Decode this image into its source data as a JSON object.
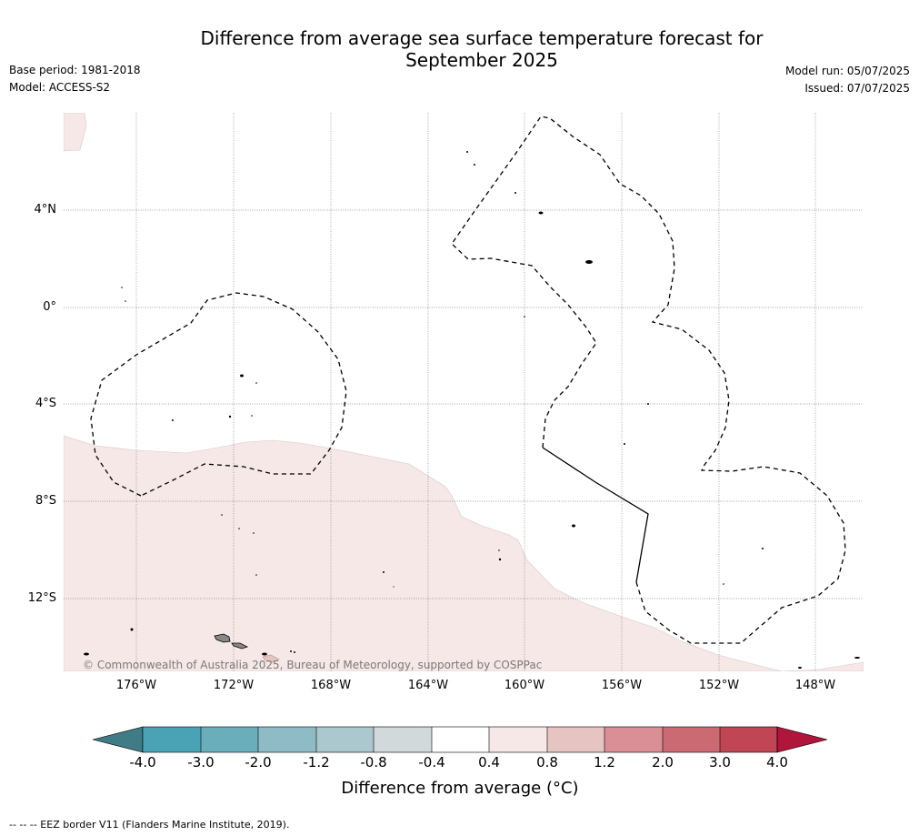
{
  "title_line1": "Difference from average sea surface temperature forecast for",
  "title_line2": "September 2025",
  "base_period": "Base period: 1981-2018",
  "model": "Model: ACCESS-S2",
  "model_run": "Model run: 05/07/2025",
  "issued": "Issued: 07/07/2025",
  "copyright": "© Commonwealth of Australia 2025, Bureau of Meteorology, supported by COSPPac",
  "footer": "--  --  -- EEZ border V11 (Flanders Marine Institute, 2019).",
  "latitude_labels": [
    "4°N",
    "0°",
    "4°S",
    "8°S",
    "12°S"
  ],
  "longitude_labels": [
    "176°W",
    "172°W",
    "168°W",
    "164°W",
    "160°W",
    "156°W",
    "152°W",
    "148°W"
  ],
  "colorbar": {
    "title": "Difference from average (°C)",
    "ticks": [
      "-4.0",
      "-3.0",
      "-2.0",
      "-1.2",
      "-0.8",
      "-0.4",
      "0.4",
      "0.8",
      "1.2",
      "2.0",
      "3.0",
      "4.0"
    ],
    "colors": [
      "#3f7c86",
      "#4aa3b5",
      "#6aaebc",
      "#8ebbc5",
      "#aac8cd",
      "#d2d9da",
      "#ffffff",
      "#f5e8e7",
      "#e6c4c1",
      "#d98f95",
      "#cc6a74",
      "#c04656",
      "#b0163a"
    ]
  },
  "map_colors": {
    "anomaly_light_warm": "#f5e8e7",
    "land": "#888888"
  }
}
